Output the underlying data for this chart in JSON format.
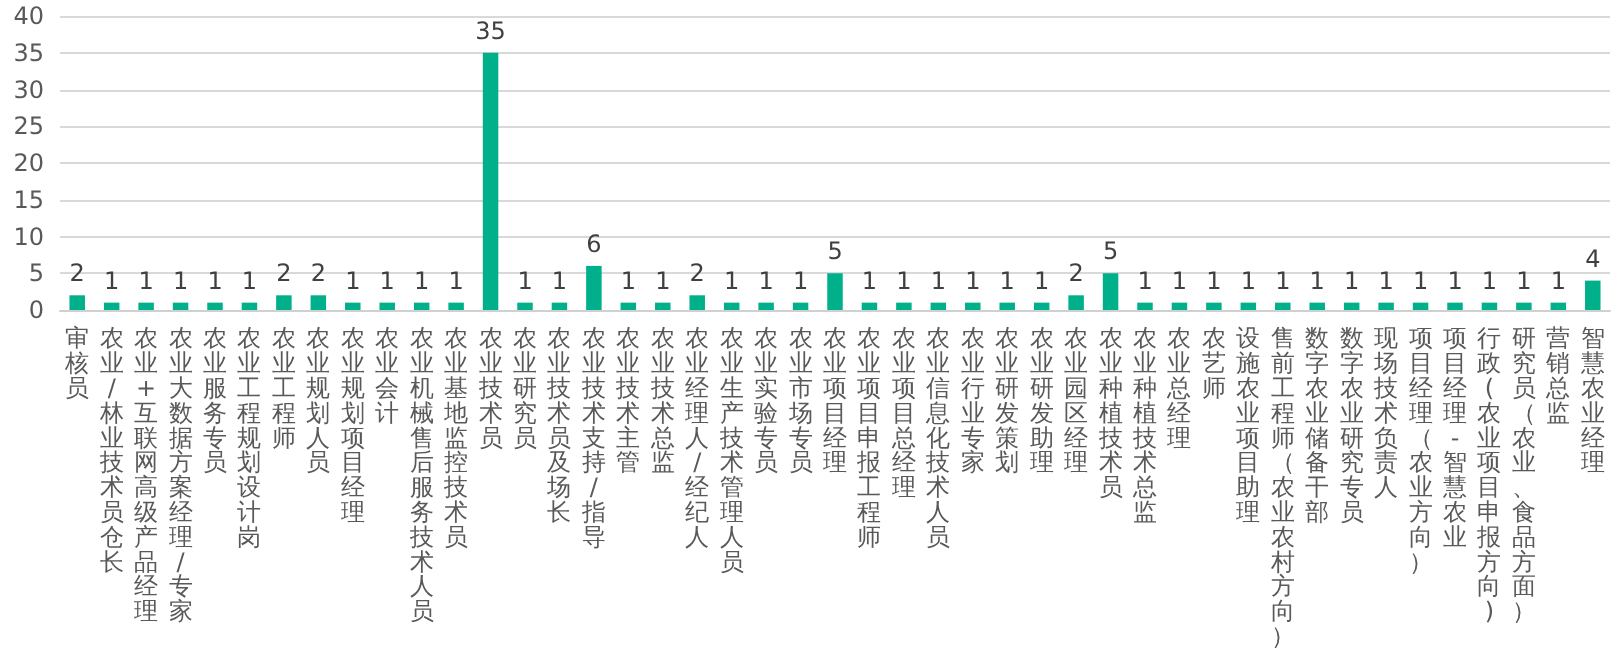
{
  "chart_data": {
    "type": "bar",
    "categories": [
      "审核员",
      "农业/林业技术员仓长",
      "农业+互联网高级产品经理",
      "农业大数据方案经理/专家",
      "农业服务专员",
      "农业工程规划设计岗",
      "农业工程师",
      "农业规划人员",
      "农业规划项目经理",
      "农业会计",
      "农业机械售后服务技术人员",
      "农业基地监控技术员",
      "农业技术员",
      "农业研究员",
      "农业技术员及场长",
      "农业技术支持/指导",
      "农业技术主管",
      "农业技术总监",
      "农业经理人/经纪人",
      "农业生产技术管理人员",
      "农业实验专员",
      "农业市场专员",
      "农业项目经理",
      "农业项目申报工程师",
      "农业项目总经理",
      "农业信息化技术人员",
      "农业行业专家",
      "农业研发策划",
      "农业研发助理",
      "农业园区经理",
      "农业种植技术员",
      "农业种植技术总监",
      "农业总经理",
      "农艺师",
      "设施农业项目助理",
      "售前工程师（农业农村方向）",
      "数字农业储备干部",
      "数字农业研究专员",
      "现场技术负责人",
      "项目经理（农业方向）",
      "项目经理-智慧农业",
      "行政(农业项目申报方向)",
      "研究员（农业、食品方面）",
      "营销总监",
      "智慧农业经理"
    ],
    "values": [
      2,
      1,
      1,
      1,
      1,
      1,
      2,
      2,
      1,
      1,
      1,
      1,
      35,
      1,
      1,
      6,
      1,
      1,
      2,
      1,
      1,
      1,
      5,
      1,
      1,
      1,
      1,
      1,
      1,
      2,
      5,
      1,
      1,
      1,
      1,
      1,
      1,
      1,
      1,
      1,
      1,
      1,
      1,
      1,
      4
    ],
    "color": "#00b08a",
    "ylim": [
      0,
      40
    ],
    "yticks": [
      0,
      5,
      10,
      15,
      20,
      25,
      30,
      35,
      40
    ],
    "grid": "y",
    "data_labels": true
  }
}
